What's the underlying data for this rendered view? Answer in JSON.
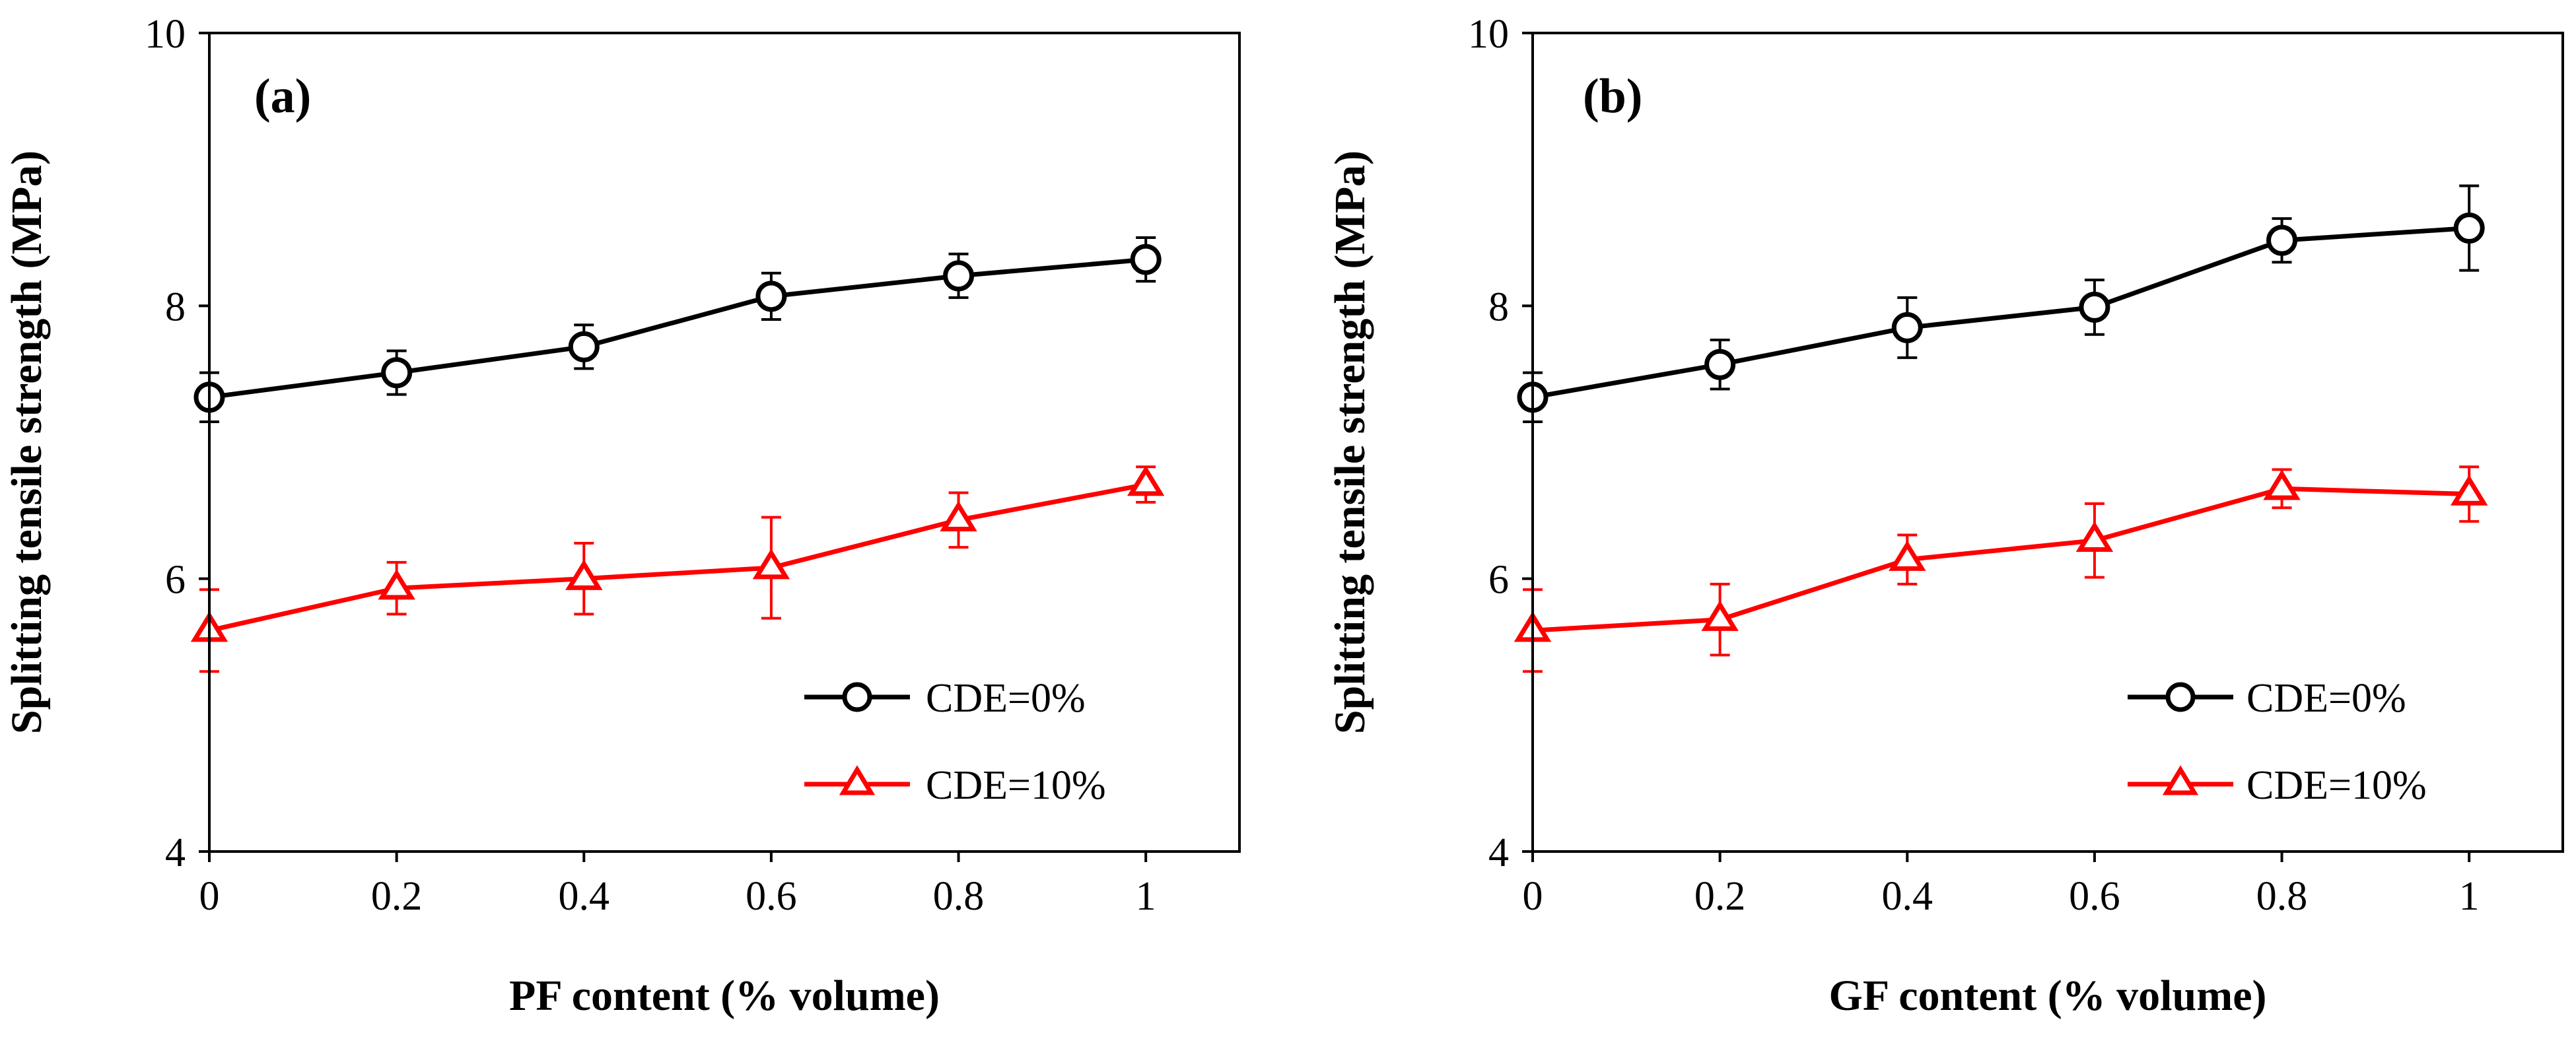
{
  "chart_data": [
    {
      "type": "line",
      "panel_label": "(a)",
      "title": "",
      "xlabel": "PF content (% volume)",
      "ylabel": "Splitting tensile strength (MPa)",
      "xlim": [
        0,
        1.1
      ],
      "ylim": [
        4,
        10
      ],
      "xticks": [
        0,
        0.2,
        0.4,
        0.6,
        0.8,
        1
      ],
      "xtick_labels": [
        "0",
        "0.2",
        "0.4",
        "0.6",
        "0.8",
        "1"
      ],
      "yticks": [
        4,
        6,
        8,
        10
      ],
      "ytick_labels": [
        "4",
        "6",
        "8",
        "10"
      ],
      "grid": false,
      "legend_position": "bottom-right",
      "x": [
        0,
        0.2,
        0.4,
        0.6,
        0.8,
        1
      ],
      "series": [
        {
          "name": "CDE=0%",
          "color": "#000000",
          "marker": "circle",
          "values": [
            7.33,
            7.51,
            7.7,
            8.07,
            8.22,
            8.34
          ],
          "errors": [
            0.18,
            0.16,
            0.16,
            0.17,
            0.16,
            0.16
          ]
        },
        {
          "name": "CDE=10%",
          "color": "#ff0000",
          "marker": "triangle",
          "values": [
            5.62,
            5.93,
            6.0,
            6.08,
            6.43,
            6.69
          ],
          "errors": [
            0.3,
            0.19,
            0.26,
            0.37,
            0.2,
            0.13
          ]
        }
      ]
    },
    {
      "type": "line",
      "panel_label": "(b)",
      "title": "",
      "xlabel": "GF content (% volume)",
      "ylabel": "Splitting tensile strength (MPa)",
      "xlim": [
        0,
        1.1
      ],
      "ylim": [
        4,
        10
      ],
      "xticks": [
        0,
        0.2,
        0.4,
        0.6,
        0.8,
        1
      ],
      "xtick_labels": [
        "0",
        "0.2",
        "0.4",
        "0.6",
        "0.8",
        "1"
      ],
      "yticks": [
        4,
        6,
        8,
        10
      ],
      "ytick_labels": [
        "4",
        "6",
        "8",
        "10"
      ],
      "grid": false,
      "legend_position": "bottom-right",
      "x": [
        0,
        0.2,
        0.4,
        0.6,
        0.8,
        1
      ],
      "series": [
        {
          "name": "CDE=0%",
          "color": "#000000",
          "marker": "circle",
          "values": [
            7.33,
            7.57,
            7.84,
            7.99,
            8.48,
            8.57
          ],
          "errors": [
            0.18,
            0.18,
            0.22,
            0.2,
            0.16,
            0.31
          ]
        },
        {
          "name": "CDE=10%",
          "color": "#ff0000",
          "marker": "triangle",
          "values": [
            5.62,
            5.7,
            6.14,
            6.28,
            6.66,
            6.62
          ],
          "errors": [
            0.3,
            0.26,
            0.18,
            0.27,
            0.14,
            0.2
          ]
        }
      ]
    }
  ]
}
